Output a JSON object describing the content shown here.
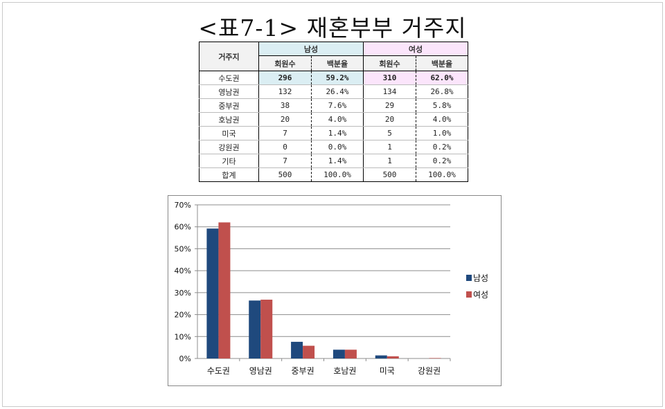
{
  "title": "<표7-1>  재혼부부  거주지",
  "table": {
    "col_city": "거주지",
    "group_male": "남성",
    "group_female": "여성",
    "sub_count": "회원수",
    "sub_pct": "백분율",
    "rows": [
      {
        "city": "수도권",
        "m_count": "296",
        "m_pct": "59.2%",
        "f_count": "310",
        "f_pct": "62.0%"
      },
      {
        "city": "영남권",
        "m_count": "132",
        "m_pct": "26.4%",
        "f_count": "134",
        "f_pct": "26.8%"
      },
      {
        "city": "중부권",
        "m_count": "38",
        "m_pct": "7.6%",
        "f_count": "29",
        "f_pct": "5.8%"
      },
      {
        "city": "호남권",
        "m_count": "20",
        "m_pct": "4.0%",
        "f_count": "20",
        "f_pct": "4.0%"
      },
      {
        "city": "미국",
        "m_count": "7",
        "m_pct": "1.4%",
        "f_count": "5",
        "f_pct": "1.0%"
      },
      {
        "city": "강원권",
        "m_count": "0",
        "m_pct": "0.0%",
        "f_count": "1",
        "f_pct": "0.2%"
      },
      {
        "city": "기타",
        "m_count": "7",
        "m_pct": "1.4%",
        "f_count": "1",
        "f_pct": "0.2%"
      },
      {
        "city": "합계",
        "m_count": "500",
        "m_pct": "100.0%",
        "f_count": "500",
        "f_pct": "100.0%"
      }
    ]
  },
  "chart_data": {
    "type": "bar",
    "categories": [
      "수도권",
      "영남권",
      "중부권",
      "호남권",
      "미국",
      "강원권"
    ],
    "series": [
      {
        "name": "남성",
        "values": [
          59.2,
          26.4,
          7.6,
          4.0,
          1.4,
          0.0
        ],
        "color": "#1f497d"
      },
      {
        "name": "여성",
        "values": [
          62.0,
          26.8,
          5.8,
          4.0,
          1.0,
          0.2
        ],
        "color": "#c0504d"
      }
    ],
    "ylim": [
      0,
      70
    ],
    "yticks": [
      0,
      10,
      20,
      30,
      40,
      50,
      60,
      70
    ],
    "ytick_suffix": "%",
    "grid": true,
    "legend": "right"
  }
}
